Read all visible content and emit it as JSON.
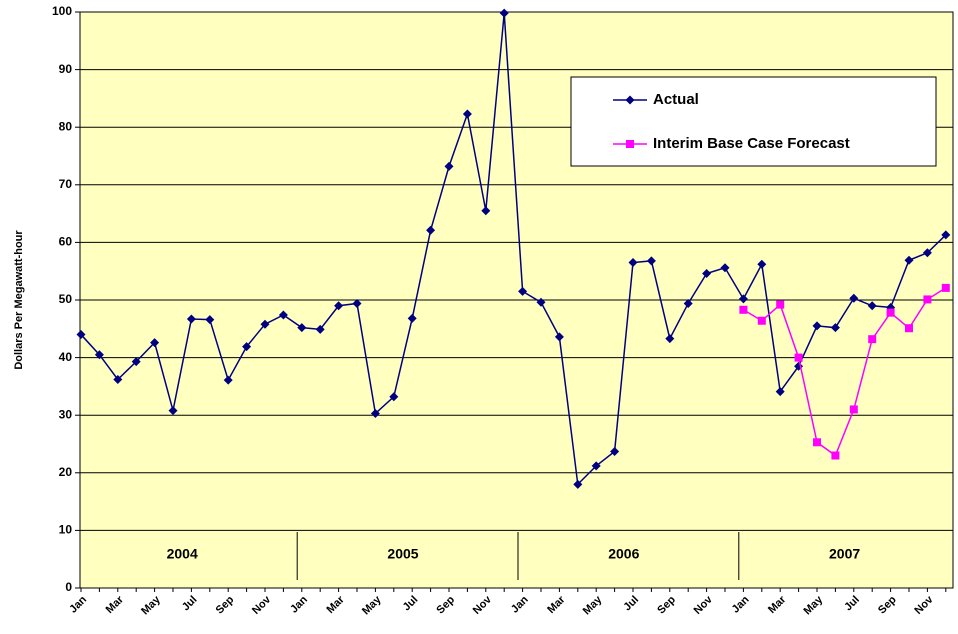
{
  "chart_data": {
    "type": "line",
    "y_label": "Dollars Per Megawatt-hour",
    "categories": [
      "Jan",
      null,
      "Mar",
      null,
      "May",
      null,
      "Jul",
      null,
      "Sep",
      null,
      "Nov",
      null,
      "Jan",
      null,
      "Mar",
      null,
      "May",
      null,
      "Jul",
      null,
      "Sep",
      null,
      "Nov",
      null,
      "Jan",
      null,
      "Mar",
      null,
      "May",
      null,
      "Jul",
      null,
      "Sep",
      null,
      "Nov",
      null,
      "Jan",
      null,
      "Mar",
      null,
      "May",
      null,
      "Jul",
      null,
      "Sep",
      null,
      "Nov",
      null
    ],
    "year_labels": [
      "2004",
      "2005",
      "2006",
      "2007"
    ],
    "series": [
      {
        "name": "Actual",
        "color": "#000080",
        "marker": "diamond",
        "values": [
          44.0,
          40.5,
          36.2,
          39.3,
          42.6,
          30.8,
          46.7,
          46.6,
          36.1,
          41.9,
          45.8,
          47.4,
          45.2,
          44.9,
          49.0,
          49.4,
          30.3,
          33.2,
          46.8,
          62.1,
          73.2,
          82.3,
          65.5,
          99.8,
          51.5,
          49.6,
          43.6,
          18.0,
          21.2,
          23.7,
          56.5,
          56.8,
          43.3,
          49.4,
          54.6,
          55.6,
          50.2,
          56.2,
          34.1,
          38.5,
          45.5,
          45.2,
          50.3,
          49.0,
          48.7,
          56.9,
          58.2,
          61.3
        ]
      },
      {
        "name": "Interim Base Case Forecast",
        "color": "#FF00FF",
        "marker": "square",
        "values": [
          null,
          null,
          null,
          null,
          null,
          null,
          null,
          null,
          null,
          null,
          null,
          null,
          null,
          null,
          null,
          null,
          null,
          null,
          null,
          null,
          null,
          null,
          null,
          null,
          null,
          null,
          null,
          null,
          null,
          null,
          null,
          null,
          null,
          null,
          null,
          null,
          48.3,
          46.4,
          49.2,
          40.0,
          25.3,
          23.0,
          31.0,
          43.2,
          47.8,
          45.1,
          50.1,
          52.1
        ]
      }
    ],
    "ylim": [
      0,
      100
    ],
    "yticks": [
      0,
      10,
      20,
      30,
      40,
      50,
      60,
      70,
      80,
      90,
      100
    ],
    "grid": true,
    "legend_position": "upper right",
    "plot_background": "#FFFFC0"
  }
}
